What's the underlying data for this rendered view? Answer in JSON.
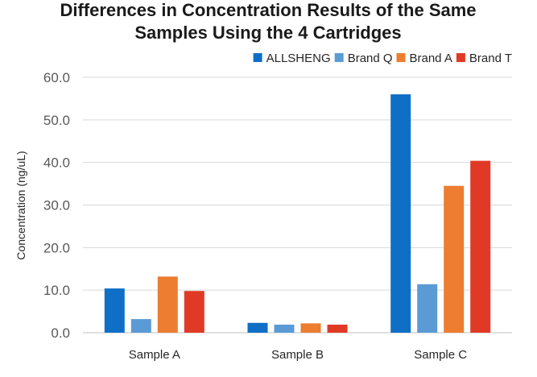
{
  "chart_data": {
    "type": "bar",
    "title": "Differences in Concentration Results of the Same Samples Using the 4 Cartridges",
    "title_lines": [
      "Differences in Concentration Results of the Same",
      "Samples Using the 4 Cartridges"
    ],
    "xlabel": "",
    "ylabel": "Concentration (ng/uL)",
    "categories": [
      "Sample A",
      "Sample B",
      "Sample C"
    ],
    "ylim": [
      0,
      60
    ],
    "yticks": [
      "0.0",
      "10.0",
      "20.0",
      "30.0",
      "40.0",
      "50.0",
      "60.0"
    ],
    "grid": true,
    "legend_position": "top-right",
    "series": [
      {
        "name": "ALLSHENG",
        "color": "#0f6fc6",
        "values": [
          10.4,
          2.3,
          56.0
        ]
      },
      {
        "name": "Brand Q",
        "color": "#5b9bd5",
        "values": [
          3.2,
          1.9,
          11.4
        ]
      },
      {
        "name": "Brand A",
        "color": "#ed7d31",
        "values": [
          13.2,
          2.2,
          34.5
        ]
      },
      {
        "name": "Brand T",
        "color": "#e03a26",
        "values": [
          9.8,
          1.9,
          40.4
        ]
      }
    ]
  }
}
